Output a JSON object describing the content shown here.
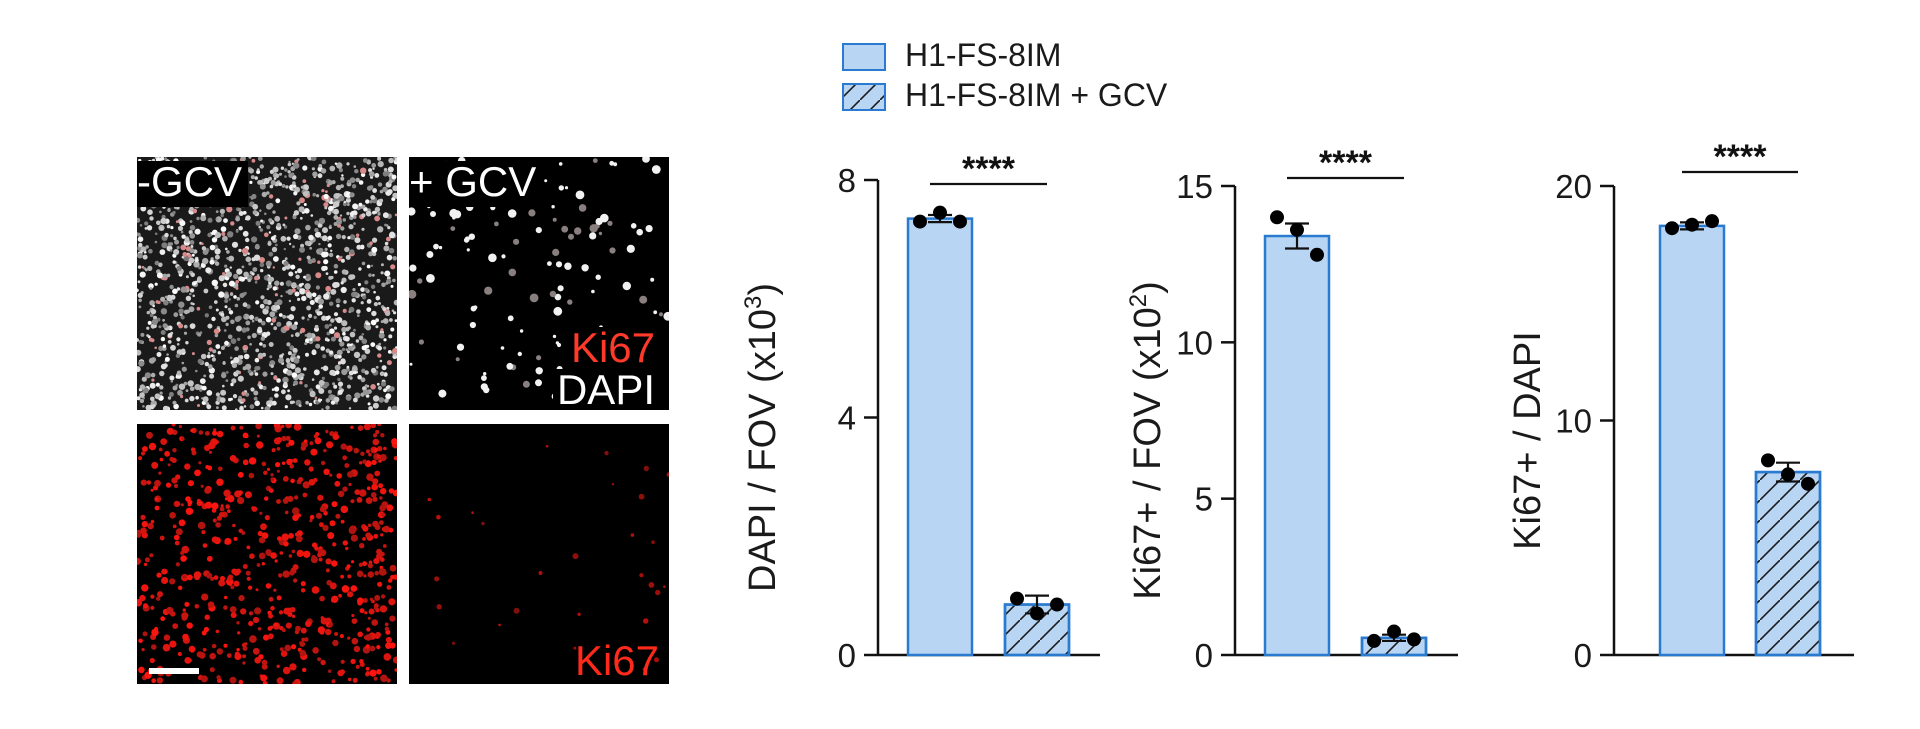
{
  "micrographs": {
    "minus_gcv_label": "-GCV",
    "plus_gcv_label": "+ GCV",
    "stain_ki67": "Ki67",
    "stain_dapi": "DAPI",
    "bottom_ki67": "Ki67"
  },
  "legend": {
    "items": [
      {
        "label": "H1-FS-8IM",
        "pattern": "solid"
      },
      {
        "label": "H1-FS-8IM + GCV",
        "pattern": "hatched"
      }
    ]
  },
  "colors": {
    "bar_fill": "#b8d6f4",
    "bar_edge": "#2a7bd0",
    "ki67_red": "#ff2a1a",
    "dot": "#000000"
  },
  "chart_data": [
    {
      "type": "bar",
      "ylabel": "DAPI / FOV (x10",
      "ylabel_sup": "3",
      "ylabel_end": ")",
      "ylim": [
        0,
        8
      ],
      "yticks": [
        "0",
        "4",
        "8"
      ],
      "series": [
        {
          "name": "H1-FS-8IM",
          "mean": 7.35,
          "sem": 0.06,
          "points": [
            7.3,
            7.45,
            7.3
          ]
        },
        {
          "name": "H1-FS-8IM + GCV",
          "mean": 0.85,
          "sem": 0.15,
          "points": [
            0.95,
            0.7,
            0.85
          ]
        }
      ],
      "significance": "****"
    },
    {
      "type": "bar",
      "ylabel": "Ki67+ / FOV (x10",
      "ylabel_sup": "2",
      "ylabel_end": ")",
      "ylim": [
        0,
        15
      ],
      "yticks": [
        "0",
        "5",
        "10",
        "15"
      ],
      "series": [
        {
          "name": "H1-FS-8IM",
          "mean": 13.4,
          "sem": 0.4,
          "points": [
            14.0,
            13.6,
            12.8
          ]
        },
        {
          "name": "H1-FS-8IM + GCV",
          "mean": 0.55,
          "sem": 0.1,
          "points": [
            0.45,
            0.75,
            0.5
          ]
        }
      ],
      "significance": "****"
    },
    {
      "type": "bar",
      "ylabel": "Ki67+ / DAPI",
      "ylabel_sup": "",
      "ylabel_end": "",
      "ylim": [
        0,
        20
      ],
      "yticks": [
        "0",
        "10",
        "20"
      ],
      "series": [
        {
          "name": "H1-FS-8IM",
          "mean": 18.3,
          "sem": 0.15,
          "points": [
            18.2,
            18.35,
            18.5
          ]
        },
        {
          "name": "H1-FS-8IM + GCV",
          "mean": 7.8,
          "sem": 0.4,
          "points": [
            8.3,
            7.7,
            7.3
          ]
        }
      ],
      "significance": "****"
    }
  ]
}
